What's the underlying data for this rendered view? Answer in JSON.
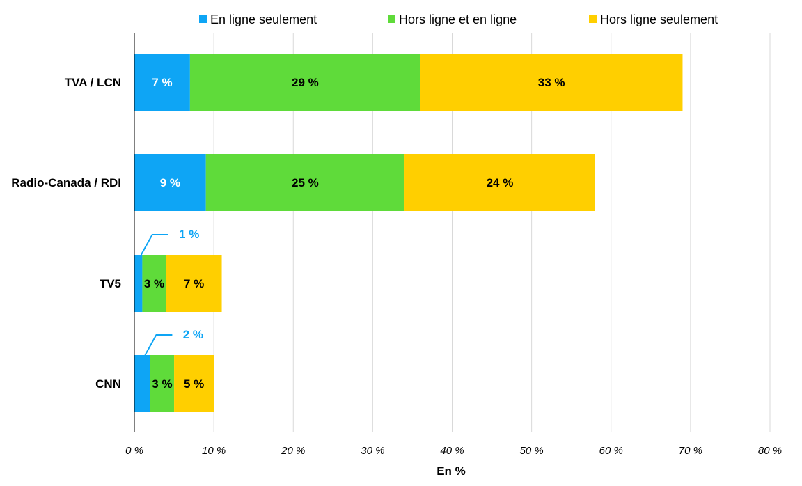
{
  "chart_data": {
    "type": "bar",
    "orientation": "horizontal",
    "stacked": true,
    "categories": [
      "TVA / LCN",
      "Radio-Canada / RDI",
      "TV5",
      "CNN"
    ],
    "series": [
      {
        "name": "En ligne seulement",
        "color": "#0ea5f5",
        "values": [
          7,
          9,
          1,
          2
        ],
        "labels": [
          "7 %",
          "9 %",
          "1 %",
          "2 %"
        ]
      },
      {
        "name": "Hors ligne et en ligne",
        "color": "#5fdb3a",
        "values": [
          29,
          25,
          3,
          3
        ],
        "labels": [
          "29 %",
          "25 %",
          "3 %",
          "3 %"
        ]
      },
      {
        "name": "Hors ligne seulement",
        "color": "#ffcf00",
        "values": [
          33,
          24,
          7,
          5
        ],
        "labels": [
          "33 %",
          "24 %",
          "7 %",
          "5 %"
        ]
      }
    ],
    "xlabel": "En %",
    "xlim": [
      0,
      80
    ],
    "xticks": [
      0,
      10,
      20,
      30,
      40,
      50,
      60,
      70,
      80
    ],
    "xtick_labels": [
      "0 %",
      "10 %",
      "20 %",
      "30 %",
      "40 %",
      "50 %",
      "60 %",
      "70 %",
      "80 %"
    ],
    "grid": "vertical",
    "legend_position": "top"
  }
}
